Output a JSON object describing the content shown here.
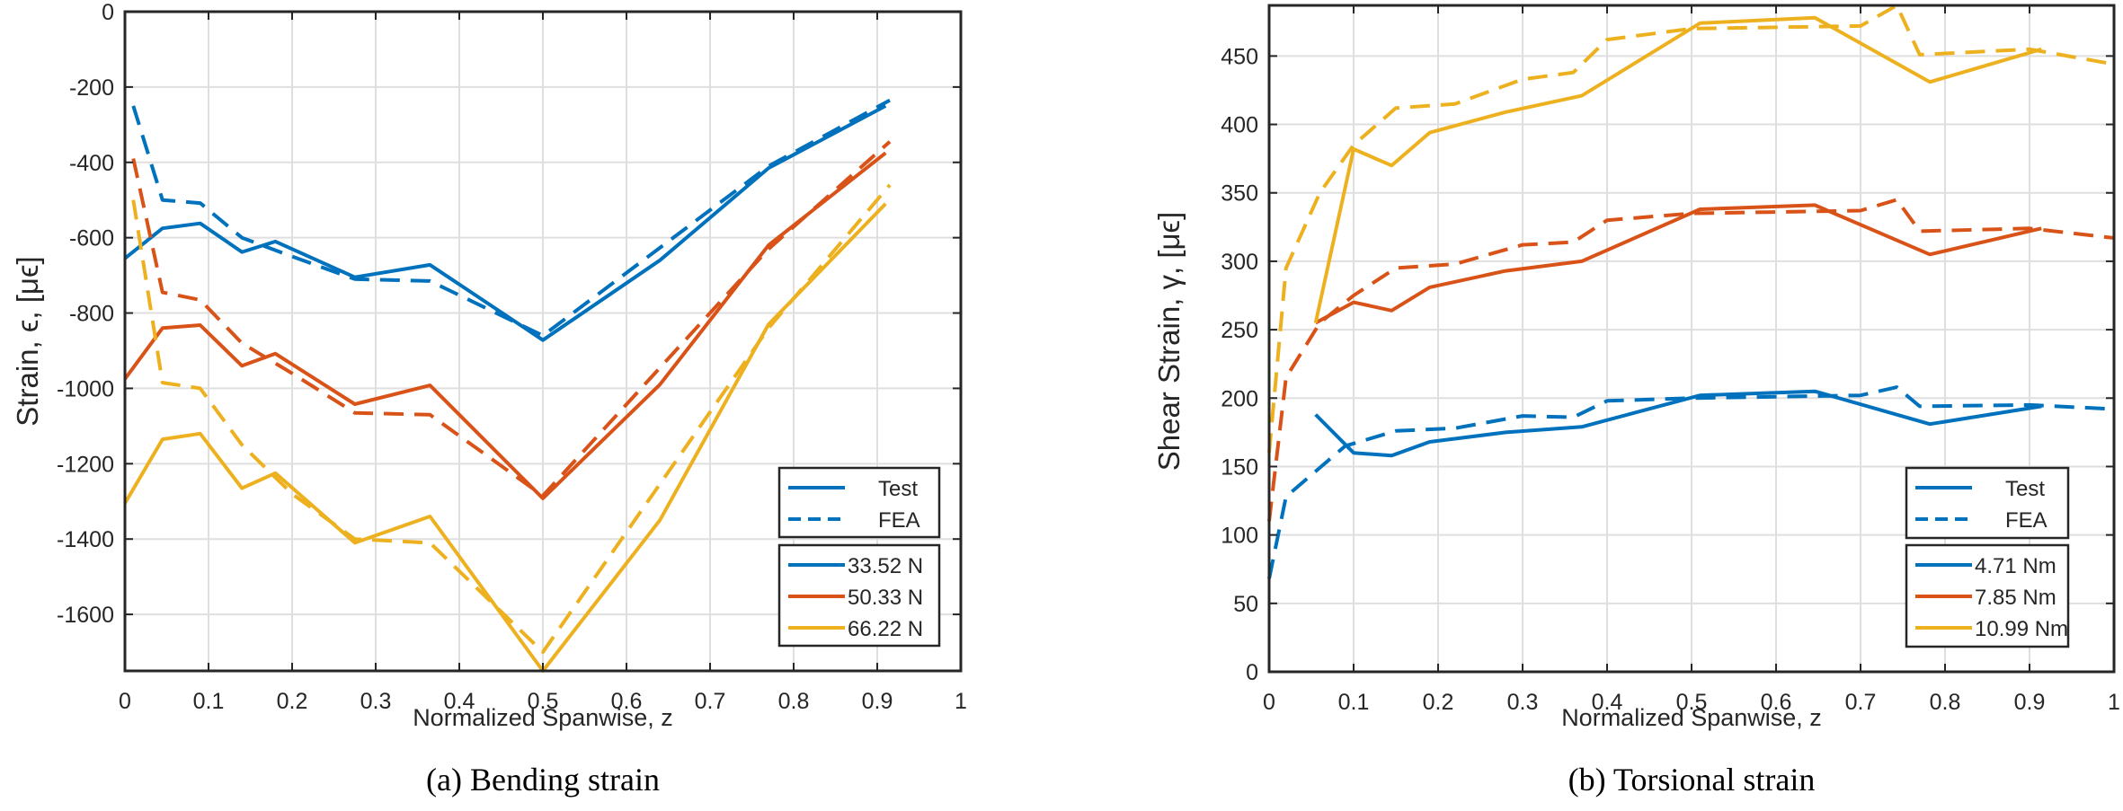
{
  "chart_data": [
    {
      "id": "bending",
      "type": "line",
      "caption": "(a) Bending strain",
      "title": "",
      "xlabel": "Normalized Spanwise, z",
      "ylabel": "Strain,  ϵ, [μϵ]",
      "xlim": [
        0,
        1
      ],
      "ylim": [
        -1750,
        0
      ],
      "xticks": [
        0,
        0.1,
        0.2,
        0.3,
        0.4,
        0.5,
        0.6,
        0.7,
        0.8,
        0.9,
        1
      ],
      "xtick_labels": [
        "0",
        "0.1",
        "0.2",
        "0.3",
        "0.4",
        "0.5",
        "0.6",
        "0.7",
        "0.8",
        "0.9",
        "1"
      ],
      "yticks": [
        0,
        -200,
        -400,
        -600,
        -800,
        -1000,
        -1200,
        -1400,
        -1600
      ],
      "ytick_labels": [
        "0",
        "-200",
        "-400",
        "-600",
        "-800",
        "-1000",
        "-1200",
        "-1400",
        "-1600"
      ],
      "grid": true,
      "legend_style": {
        "placement": "bottom-right",
        "entries": [
          {
            "label": "Test",
            "style": "solid"
          },
          {
            "label": "FEA",
            "style": "dashed"
          }
        ]
      },
      "legend_load": {
        "placement": "bottom-right",
        "entries": [
          {
            "label": "33.52 N",
            "color": "#0072BD"
          },
          {
            "label": "50.33 N",
            "color": "#D95319"
          },
          {
            "label": "66.22 N",
            "color": "#EDB120"
          }
        ]
      },
      "series": [
        {
          "name": "33.52 N Test",
          "color": "#0072BD",
          "style": "solid",
          "x": [
            0,
            0.045,
            0.09,
            0.14,
            0.18,
            0.275,
            0.365,
            0.5,
            0.64,
            0.77,
            0.91
          ],
          "y": [
            -655,
            -575,
            -562,
            -638,
            -610,
            -705,
            -672,
            -872,
            -660,
            -415,
            -250
          ]
        },
        {
          "name": "33.52 N FEA",
          "color": "#0072BD",
          "style": "dashed",
          "x": [
            0.01,
            0.045,
            0.09,
            0.14,
            0.2,
            0.275,
            0.365,
            0.5,
            0.77,
            0.915
          ],
          "y": [
            -250,
            -500,
            -508,
            -600,
            -650,
            -710,
            -715,
            -860,
            -410,
            -235
          ]
        },
        {
          "name": "50.33 N Test",
          "color": "#D95319",
          "style": "solid",
          "x": [
            0,
            0.045,
            0.09,
            0.14,
            0.18,
            0.275,
            0.365,
            0.5,
            0.64,
            0.77,
            0.91
          ],
          "y": [
            -975,
            -840,
            -832,
            -940,
            -908,
            -1042,
            -992,
            -1292,
            -990,
            -620,
            -375
          ]
        },
        {
          "name": "50.33 N FEA",
          "color": "#D95319",
          "style": "dashed",
          "x": [
            0.01,
            0.045,
            0.09,
            0.14,
            0.2,
            0.275,
            0.365,
            0.5,
            0.77,
            0.915
          ],
          "y": [
            -390,
            -745,
            -765,
            -880,
            -960,
            -1065,
            -1070,
            -1285,
            -630,
            -345
          ]
        },
        {
          "name": "66.22 N Test",
          "color": "#EDB120",
          "style": "solid",
          "x": [
            0,
            0.045,
            0.09,
            0.14,
            0.18,
            0.275,
            0.365,
            0.5,
            0.64,
            0.77,
            0.91
          ],
          "y": [
            -1305,
            -1135,
            -1120,
            -1265,
            -1225,
            -1410,
            -1340,
            -1750,
            -1350,
            -830,
            -510
          ]
        },
        {
          "name": "66.22 N FEA",
          "color": "#EDB120",
          "style": "dashed",
          "x": [
            0.01,
            0.045,
            0.09,
            0.14,
            0.2,
            0.275,
            0.365,
            0.5,
            0.77,
            0.915
          ],
          "y": [
            -500,
            -985,
            -1000,
            -1150,
            -1280,
            -1400,
            -1410,
            -1700,
            -840,
            -460
          ]
        }
      ]
    },
    {
      "id": "torsional",
      "type": "line",
      "caption": "(b) Torsional strain",
      "title": "",
      "xlabel": "Normalized Spanwise, z",
      "ylabel": "Shear Strain,  γ, [μϵ]",
      "xlim": [
        0,
        1
      ],
      "ylim": [
        0,
        487
      ],
      "xticks": [
        0,
        0.1,
        0.2,
        0.3,
        0.4,
        0.5,
        0.6,
        0.7,
        0.8,
        0.9,
        1
      ],
      "xtick_labels": [
        "0",
        "0.1",
        "0.2",
        "0.3",
        "0.4",
        "0.5",
        "0.6",
        "0.7",
        "0.8",
        "0.9",
        "1"
      ],
      "yticks": [
        0,
        50,
        100,
        150,
        200,
        250,
        300,
        350,
        400,
        450
      ],
      "ytick_labels": [
        "0",
        "50",
        "100",
        "150",
        "200",
        "250",
        "300",
        "350",
        "400",
        "450"
      ],
      "grid": true,
      "legend_style": {
        "placement": "bottom-right",
        "entries": [
          {
            "label": "Test",
            "style": "solid"
          },
          {
            "label": "FEA",
            "style": "dashed"
          }
        ]
      },
      "legend_load": {
        "placement": "bottom-right",
        "entries": [
          {
            "label": "4.71 Nm",
            "color": "#0072BD"
          },
          {
            "label": "7.85 Nm",
            "color": "#D95319"
          },
          {
            "label": "10.99 Nm",
            "color": "#EDB120"
          }
        ]
      },
      "series": [
        {
          "name": "4.71 Nm Test",
          "color": "#0072BD",
          "style": "solid",
          "x": [
            0.055,
            0.1,
            0.145,
            0.19,
            0.28,
            0.37,
            0.51,
            0.646,
            0.782,
            0.914
          ],
          "y": [
            188,
            160,
            158,
            168,
            175,
            179,
            202,
            205,
            181,
            194
          ]
        },
        {
          "name": "4.71 Nm FEA",
          "color": "#0072BD",
          "style": "dashed",
          "x": [
            0,
            0.02,
            0.09,
            0.15,
            0.22,
            0.3,
            0.36,
            0.4,
            0.5,
            0.7,
            0.743,
            0.77,
            0.9,
            1
          ],
          "y": [
            68,
            128,
            165,
            176,
            178,
            187,
            186,
            198,
            200,
            202,
            208,
            194,
            195,
            192
          ]
        },
        {
          "name": "7.85 Nm Test",
          "color": "#D95319",
          "style": "solid",
          "x": [
            0.055,
            0.1,
            0.145,
            0.19,
            0.28,
            0.37,
            0.51,
            0.646,
            0.782,
            0.914
          ],
          "y": [
            255,
            270,
            264,
            281,
            293,
            300,
            338,
            341,
            305,
            324
          ]
        },
        {
          "name": "7.85 Nm FEA",
          "color": "#D95319",
          "style": "dashed",
          "x": [
            0,
            0.02,
            0.06,
            0.1,
            0.15,
            0.22,
            0.3,
            0.36,
            0.4,
            0.5,
            0.7,
            0.743,
            0.77,
            0.9,
            1
          ],
          "y": [
            110,
            215,
            255,
            275,
            295,
            298,
            312,
            314,
            330,
            335,
            337,
            345,
            322,
            324,
            317
          ]
        },
        {
          "name": "10.99 Nm Test",
          "color": "#EDB120",
          "style": "solid",
          "x": [
            0.055,
            0.1,
            0.145,
            0.19,
            0.28,
            0.37,
            0.51,
            0.646,
            0.782,
            0.914
          ],
          "y": [
            255,
            382,
            370,
            394,
            409,
            421,
            474,
            478,
            431,
            455
          ]
        },
        {
          "name": "10.99 Nm FEA",
          "color": "#EDB120",
          "style": "dashed",
          "x": [
            0,
            0.02,
            0.06,
            0.1,
            0.15,
            0.22,
            0.3,
            0.36,
            0.4,
            0.5,
            0.7,
            0.743,
            0.77,
            0.9,
            1
          ],
          "y": [
            160,
            295,
            350,
            385,
            412,
            415,
            433,
            438,
            462,
            470,
            472,
            487,
            451,
            455,
            444
          ]
        }
      ]
    }
  ]
}
